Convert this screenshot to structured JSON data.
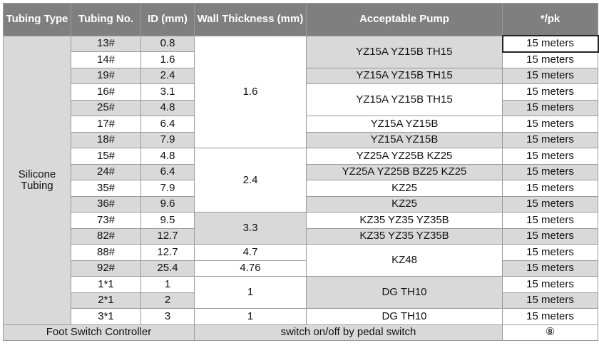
{
  "header": {
    "tubing_type": "Tubing Type",
    "tubing_no": "Tubing No.",
    "id": "ID (mm)",
    "wall": "Wall Thickness (mm)",
    "pump": "Acceptable Pump",
    "pk": "*/pk"
  },
  "tubing_type": "Silicone Tubing",
  "rows": [
    {
      "no": "13#",
      "id": "0.8",
      "pk": "15 meters"
    },
    {
      "no": "14#",
      "id": "1.6",
      "pk": "15 meters"
    },
    {
      "no": "19#",
      "id": "2.4",
      "pk": "15 meters"
    },
    {
      "no": "16#",
      "id": "3.1",
      "pk": "15 meters"
    },
    {
      "no": "25#",
      "id": "4.8",
      "pk": "15 meters"
    },
    {
      "no": "17#",
      "id": "6.4",
      "pk": "15 meters"
    },
    {
      "no": "18#",
      "id": "7.9",
      "pk": "15 meters"
    },
    {
      "no": "15#",
      "id": "4.8",
      "pk": "15 meters"
    },
    {
      "no": "24#",
      "id": "6.4",
      "pk": "15 meters"
    },
    {
      "no": "35#",
      "id": "7.9",
      "pk": "15 meters"
    },
    {
      "no": "36#",
      "id": "9.6",
      "pk": "15 meters"
    },
    {
      "no": "73#",
      "id": "9.5",
      "pk": "15 meters"
    },
    {
      "no": "82#",
      "id": "12.7",
      "pk": "15 meters"
    },
    {
      "no": "88#",
      "id": "12.7",
      "pk": "15 meters"
    },
    {
      "no": "92#",
      "id": "25.4",
      "pk": "15 meters"
    },
    {
      "no": "1*1",
      "id": "1",
      "pk": "15 meters"
    },
    {
      "no": "2*1",
      "id": "2",
      "pk": "15 meters"
    },
    {
      "no": "3*1",
      "id": "3",
      "pk": "15 meters"
    }
  ],
  "wall": {
    "w_1_6": "1.6",
    "w_2_4": "2.4",
    "w_3_3": "3.3",
    "w_4_7": "4.7",
    "w_4_76": "4.76",
    "w_1_a": "1",
    "w_1_b": "1"
  },
  "pump": {
    "p_13_14": "YZ15A YZ15B TH15",
    "p_19": "YZ15A YZ15B TH15",
    "p_16_25": "YZ15A YZ15B TH15",
    "p_17": "YZ15A YZ15B",
    "p_18": "YZ15A YZ15B",
    "p_15": "YZ25A YZ25B KZ25",
    "p_24": "YZ25A YZ25B BZ25 KZ25",
    "p_35": "KZ25",
    "p_36": "KZ25",
    "p_73": "KZ35 YZ35 YZ35B",
    "p_82": "KZ35 YZ35 YZ35B",
    "p_88_92": "KZ48",
    "p_1_2": "DG  TH10",
    "p_3": "DG  TH10"
  },
  "footer": {
    "label": "Foot Switch Controller",
    "desc": "switch on/off by pedal switch",
    "pk": "⑧"
  }
}
